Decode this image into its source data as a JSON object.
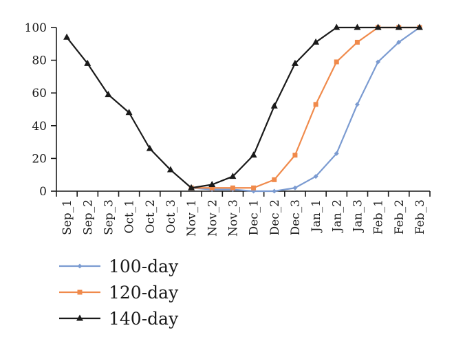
{
  "chart_data": {
    "type": "line",
    "title": "",
    "xlabel": "",
    "ylabel": "",
    "categories": [
      "Sep_1",
      "Sep_2",
      "Sep_3",
      "Oct_1",
      "Oct_2",
      "Oct_3",
      "Nov_1",
      "Nov_2",
      "Nov_3",
      "Dec_1",
      "Dec_2",
      "Dec_3",
      "Jan_1",
      "Jan_2",
      "Jan_3",
      "Feb_1",
      "Feb_2",
      "Feb_3"
    ],
    "ylim": [
      0,
      100
    ],
    "yticks": [
      0,
      20,
      40,
      60,
      80,
      100
    ],
    "grid": false,
    "legend_position": "bottom-left",
    "series": [
      {
        "name": "100-day",
        "color": "#7b9bd1",
        "marker": "diamond",
        "values": [
          null,
          null,
          null,
          null,
          null,
          null,
          2,
          1,
          1,
          0,
          0,
          2,
          9,
          23,
          53,
          79,
          91,
          100
        ]
      },
      {
        "name": "120-day",
        "color": "#f08a4b",
        "marker": "square",
        "values": [
          null,
          null,
          null,
          null,
          null,
          null,
          2,
          2,
          2,
          2,
          7,
          22,
          53,
          79,
          91,
          100,
          100,
          100
        ]
      },
      {
        "name": "140-day",
        "color": "#1a1a1a",
        "marker": "triangle",
        "values": [
          94,
          78,
          59,
          48,
          26,
          13,
          2,
          4,
          9,
          22,
          52,
          78,
          91,
          100,
          100,
          100,
          100,
          100
        ]
      }
    ]
  }
}
